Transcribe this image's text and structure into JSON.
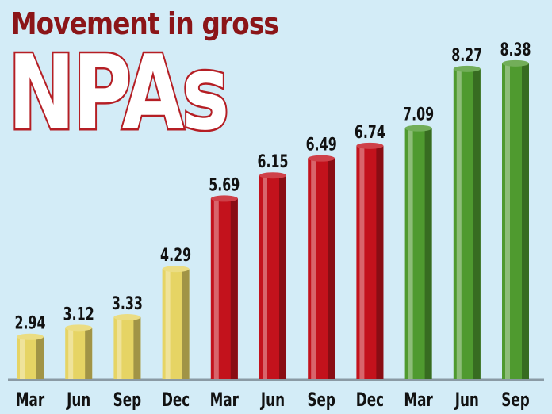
{
  "chart_data": {
    "type": "bar",
    "title": "Movement in gross",
    "subtitle": "NPAs",
    "categories": [
      "Mar",
      "Jun",
      "Sep",
      "Dec",
      "Mar",
      "Jun",
      "Sep",
      "Dec",
      "Mar",
      "Jun",
      "Sep"
    ],
    "values": [
      2.94,
      3.12,
      3.33,
      4.29,
      5.69,
      6.15,
      6.49,
      6.74,
      7.09,
      8.27,
      8.38
    ],
    "value_labels": [
      "2.94",
      "3.12",
      "3.33",
      "4.29",
      "5.69",
      "6.15",
      "6.49",
      "6.74",
      "7.09",
      "8.27",
      "8.38"
    ],
    "bar_colors": [
      "#e6d464",
      "#e6d464",
      "#e6d464",
      "#e6d464",
      "#c3121c",
      "#c3121c",
      "#c3121c",
      "#c3121c",
      "#4f9a2f",
      "#4f9a2f",
      "#4f9a2f"
    ],
    "grid": false,
    "legend": "none"
  }
}
